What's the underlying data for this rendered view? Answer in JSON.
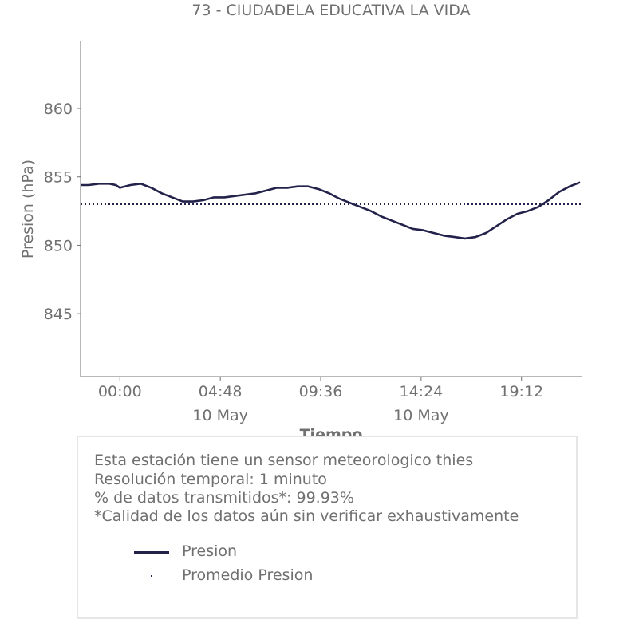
{
  "chart_data": {
    "type": "line",
    "title": "73 - CIUDADELA EDUCATIVA LA VIDA",
    "xlabel": "Tiempo",
    "ylabel": "Presion (hPa)",
    "x_unit": "hours",
    "x_range": [
      -1.88,
      22.07
    ],
    "xlim_labels": [
      "00:00",
      "04:48",
      "09:36",
      "14:24",
      "19:12"
    ],
    "xticks": [
      {
        "x": 0,
        "label": "00:00",
        "sublabel": ""
      },
      {
        "x": 4.8,
        "label": "04:48",
        "sublabel": "10 May"
      },
      {
        "x": 9.6,
        "label": "09:36",
        "sublabel": ""
      },
      {
        "x": 14.4,
        "label": "14:24",
        "sublabel": "10 May"
      },
      {
        "x": 19.2,
        "label": "19:12",
        "sublabel": ""
      }
    ],
    "ylim": [
      840.4,
      864.9
    ],
    "yticks": [
      845,
      850,
      855,
      860
    ],
    "grid": false,
    "series": [
      {
        "name": "Presion",
        "color": "#22224a",
        "style": "solid",
        "x": [
          -1.85,
          -1.5,
          -1.0,
          -0.5,
          -0.2,
          0.0,
          0.5,
          1.0,
          1.5,
          2.0,
          2.5,
          3.0,
          3.5,
          4.0,
          4.5,
          5.0,
          5.5,
          6.0,
          6.5,
          7.0,
          7.5,
          8.0,
          8.5,
          9.0,
          9.5,
          10.0,
          10.5,
          11.0,
          11.5,
          12.0,
          12.5,
          13.0,
          13.5,
          14.0,
          14.5,
          15.0,
          15.5,
          16.0,
          16.5,
          17.0,
          17.5,
          18.0,
          18.5,
          19.0,
          19.5,
          20.0,
          20.5,
          21.0,
          21.5,
          22.0
        ],
        "values": [
          854.4,
          854.4,
          854.5,
          854.5,
          854.4,
          854.2,
          854.4,
          854.5,
          854.2,
          853.8,
          853.5,
          853.2,
          853.2,
          853.3,
          853.5,
          853.5,
          853.6,
          853.7,
          853.8,
          854.0,
          854.2,
          854.2,
          854.3,
          854.3,
          854.1,
          853.8,
          853.4,
          853.1,
          852.8,
          852.5,
          852.1,
          851.8,
          851.5,
          851.2,
          851.1,
          850.9,
          850.7,
          850.6,
          850.5,
          850.6,
          850.9,
          851.4,
          851.9,
          852.3,
          852.5,
          852.8,
          853.3,
          853.9,
          854.3,
          854.6
        ]
      },
      {
        "name": "Promedio Presion",
        "color": "#22224a",
        "style": "dotted",
        "x": [
          -1.88,
          22.07
        ],
        "values": [
          853.0,
          853.0
        ]
      }
    ]
  },
  "info": {
    "lines": [
      "Esta estación tiene un sensor meteorologico thies",
      "Resolución temporal: 1 minuto",
      "% de datos transmitidos*: 99.93%",
      "*Calidad de los datos aún sin verificar exhaustivamente"
    ]
  },
  "legend": {
    "items": [
      {
        "label": "Presion"
      },
      {
        "label": "Promedio Presion"
      }
    ]
  }
}
